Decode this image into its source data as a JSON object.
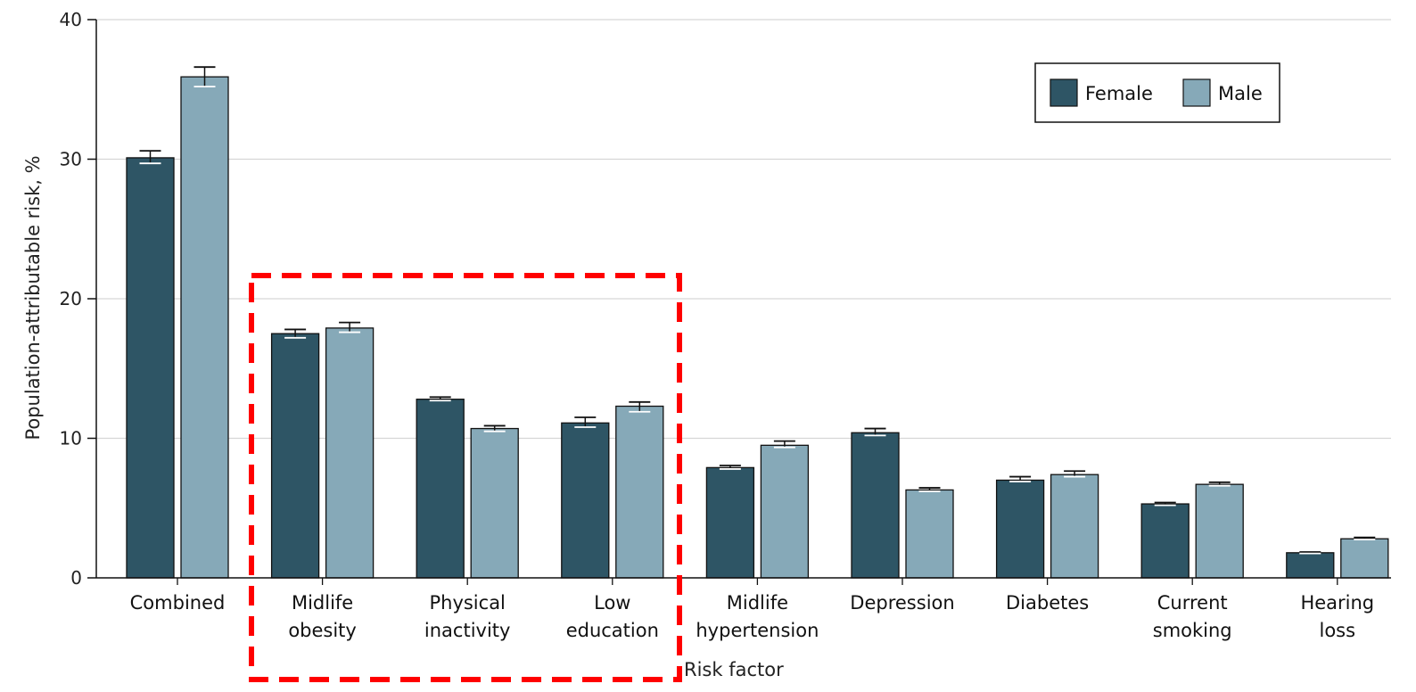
{
  "chart_data": {
    "type": "bar",
    "title": "",
    "xlabel": "Risk factor",
    "ylabel": "Population-attributable risk, %",
    "ylim": [
      0,
      40
    ],
    "yticks": [
      0,
      10,
      20,
      30,
      40
    ],
    "grid": true,
    "legend": {
      "position": "top-right",
      "entries": [
        "Female",
        "Male"
      ]
    },
    "categories": [
      [
        "Combined"
      ],
      [
        "Midlife",
        "obesity"
      ],
      [
        "Physical",
        "inactivity"
      ],
      [
        "Low",
        "education"
      ],
      [
        "Midlife",
        "hypertension"
      ],
      [
        "Depression"
      ],
      [
        "Diabetes"
      ],
      [
        "Current",
        "smoking"
      ],
      [
        "Hearing",
        "loss"
      ]
    ],
    "series": [
      {
        "name": "Female",
        "color": "#2e5565",
        "values": [
          30.1,
          17.5,
          12.8,
          11.1,
          7.9,
          10.4,
          7.0,
          5.3,
          1.8
        ],
        "error_low": [
          29.7,
          17.2,
          12.7,
          10.8,
          7.8,
          10.2,
          6.9,
          5.2,
          1.75
        ],
        "error_high": [
          30.6,
          17.8,
          12.95,
          11.5,
          8.05,
          10.7,
          7.25,
          5.4,
          1.85
        ]
      },
      {
        "name": "Male",
        "color": "#86a9b8",
        "values": [
          35.9,
          17.9,
          10.7,
          12.3,
          9.5,
          6.3,
          7.4,
          6.7,
          2.8
        ],
        "error_low": [
          35.2,
          17.6,
          10.5,
          11.9,
          9.35,
          6.2,
          7.25,
          6.6,
          2.75
        ],
        "error_high": [
          36.6,
          18.3,
          10.9,
          12.6,
          9.8,
          6.45,
          7.65,
          6.85,
          2.9
        ]
      }
    ],
    "annotations": [
      {
        "type": "dashed-box",
        "color": "#ff0000",
        "encloses": [
          "Midlife obesity",
          "Physical inactivity",
          "Low education"
        ]
      }
    ]
  }
}
